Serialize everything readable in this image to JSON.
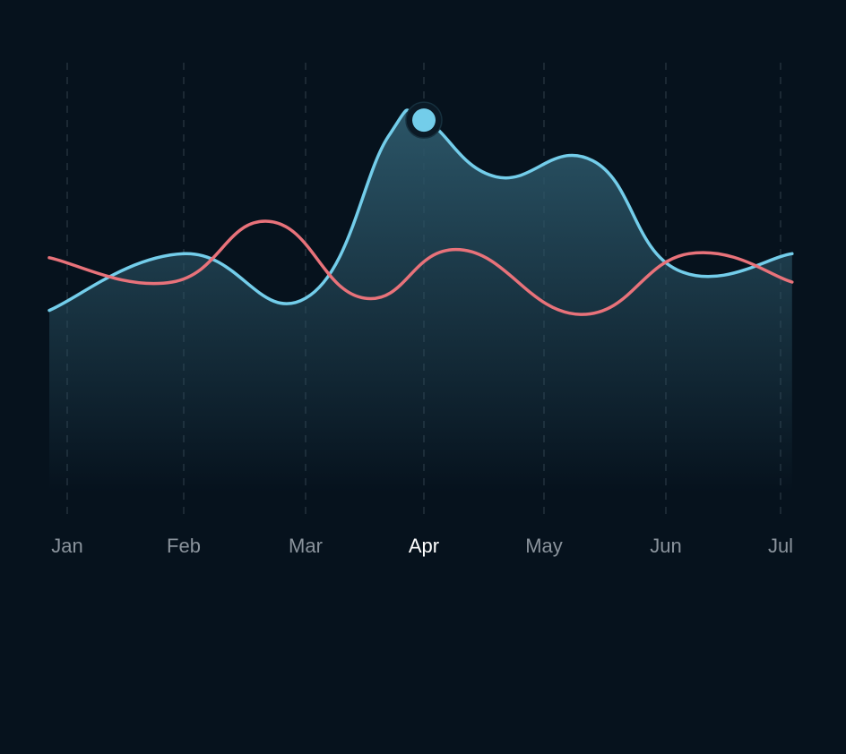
{
  "colors": {
    "background": "#06121d",
    "series_blue": "#73cdea",
    "series_red": "#e8727a",
    "gridline": "#23313d",
    "tick_label": "#8a939c",
    "tick_label_active": "#ffffff",
    "area_fill_top": "#2b5567",
    "marker_ring": "#0b1a26"
  },
  "chart_data": {
    "type": "line",
    "title": "",
    "xlabel": "",
    "ylabel": "",
    "grid": "vertical dashed",
    "legend": "none",
    "categories": [
      "Jan",
      "Feb",
      "Mar",
      "Apr",
      "May",
      "Jun",
      "Jul"
    ],
    "highlighted_category": "Apr",
    "ylim": [
      0,
      100
    ],
    "series": [
      {
        "key": "blue",
        "color": "#73cdea",
        "fill": "gradient-area",
        "x": [
          0,
          1.0,
          2.0,
          2.7,
          3.0,
          3.6,
          4.4,
          5.1,
          6.1
        ],
        "y": [
          45,
          59,
          48,
          88,
          92,
          78,
          82,
          55,
          59
        ]
      },
      {
        "key": "red",
        "color": "#e8727a",
        "fill": "none",
        "x": [
          0,
          0.9,
          1.7,
          2.5,
          3.3,
          4.3,
          5.2,
          6.1
        ],
        "y": [
          58,
          52,
          67,
          48,
          60,
          44,
          59,
          52
        ]
      }
    ],
    "marker": {
      "series": "blue",
      "x": 3.0,
      "y": 92
    }
  }
}
